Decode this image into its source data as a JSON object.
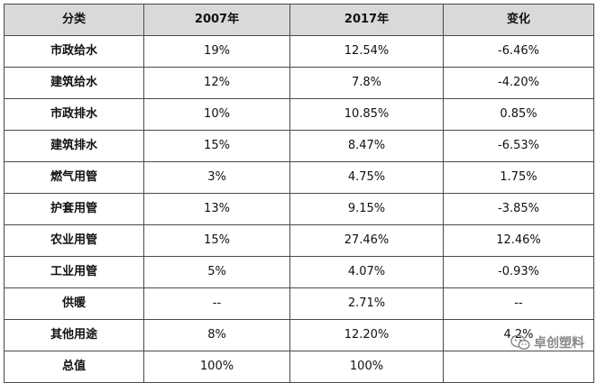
{
  "table": {
    "headers": [
      "分类",
      "2007年",
      "2017年",
      "变化"
    ],
    "rows": [
      {
        "category": "市政给水",
        "y2007": "19%",
        "y2017": "12.54%",
        "change": "-6.46%"
      },
      {
        "category": "建筑给水",
        "y2007": "12%",
        "y2017": "7.8%",
        "change": "-4.20%"
      },
      {
        "category": "市政排水",
        "y2007": "10%",
        "y2017": "10.85%",
        "change": "0.85%"
      },
      {
        "category": "建筑排水",
        "y2007": "15%",
        "y2017": "8.47%",
        "change": "-6.53%"
      },
      {
        "category": "燃气用管",
        "y2007": "3%",
        "y2017": "4.75%",
        "change": "1.75%"
      },
      {
        "category": "护套用管",
        "y2007": "13%",
        "y2017": "9.15%",
        "change": "-3.85%"
      },
      {
        "category": "农业用管",
        "y2007": "15%",
        "y2017": "27.46%",
        "change": "12.46%"
      },
      {
        "category": "工业用管",
        "y2007": "5%",
        "y2017": "4.07%",
        "change": "-0.93%"
      },
      {
        "category": "供暖",
        "y2007": "--",
        "y2017": "2.71%",
        "change": "--"
      },
      {
        "category": "其他用途",
        "y2007": "8%",
        "y2017": "12.20%",
        "change": "4.2%"
      },
      {
        "category": "总值",
        "y2007": "100%",
        "y2017": "100%",
        "change": ""
      }
    ]
  },
  "watermark": {
    "text": "卓创塑料",
    "icon": "wechat-icon"
  }
}
